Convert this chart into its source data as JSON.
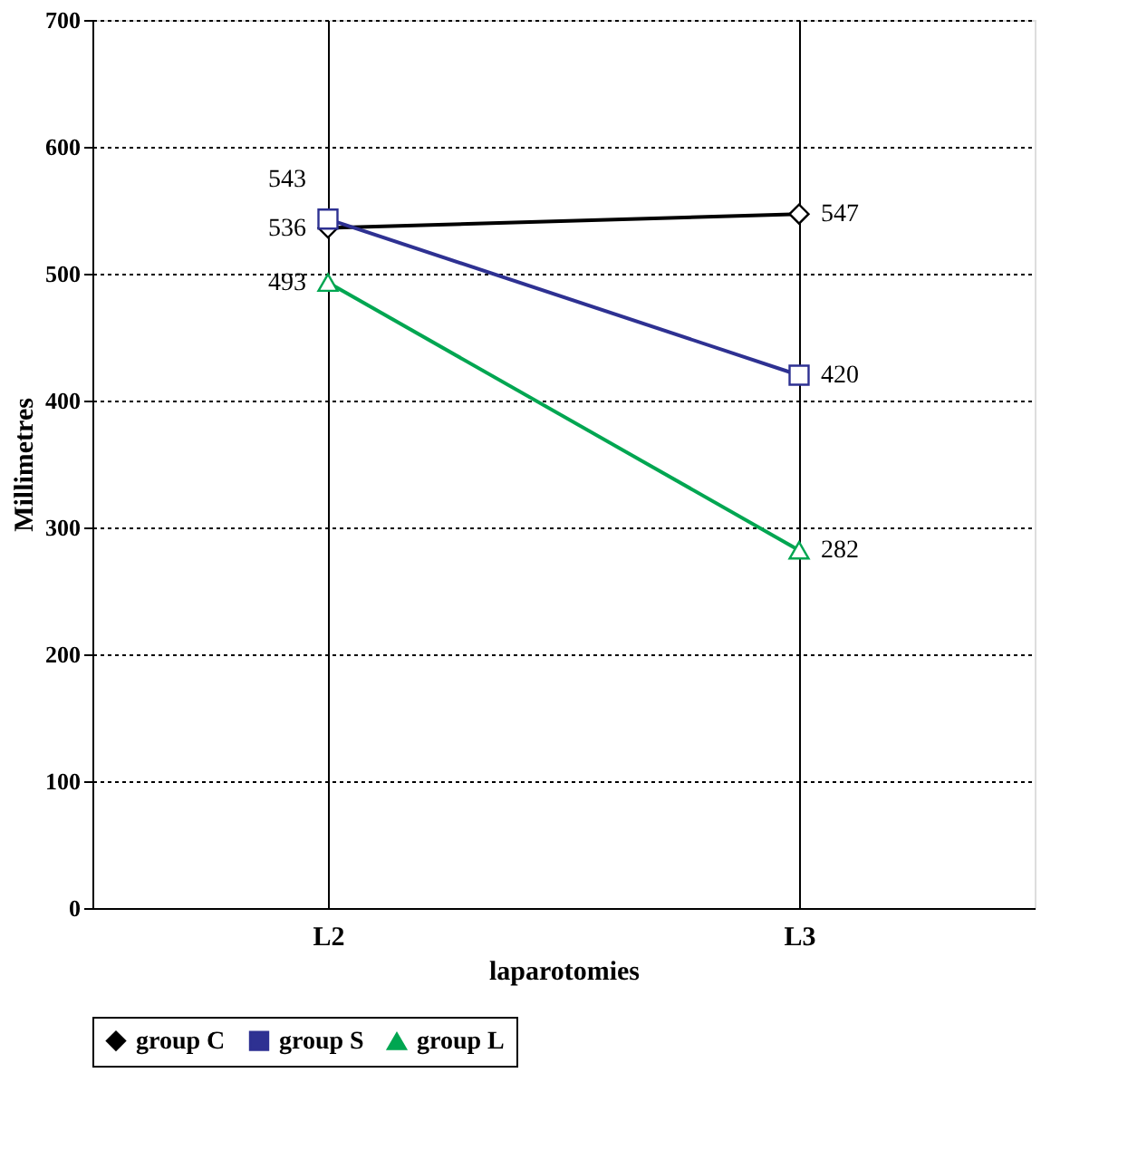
{
  "chart_data": {
    "type": "line",
    "xlabel": "laparotomies",
    "ylabel": "Millimetres",
    "categories": [
      "L2",
      "L3"
    ],
    "series": [
      {
        "name": "group C",
        "color": "#000000",
        "marker": "diamond",
        "values": [
          536,
          547
        ]
      },
      {
        "name": "group S",
        "color": "#2e3192",
        "marker": "square",
        "values": [
          543,
          420
        ]
      },
      {
        "name": "group L",
        "color": "#00a651",
        "marker": "triangle",
        "values": [
          493,
          282
        ]
      }
    ],
    "ylim": [
      0,
      700
    ],
    "yticks": [
      0,
      100,
      200,
      300,
      400,
      500,
      600,
      700
    ],
    "grid": true,
    "legend": "bottom",
    "data_labels": true
  }
}
